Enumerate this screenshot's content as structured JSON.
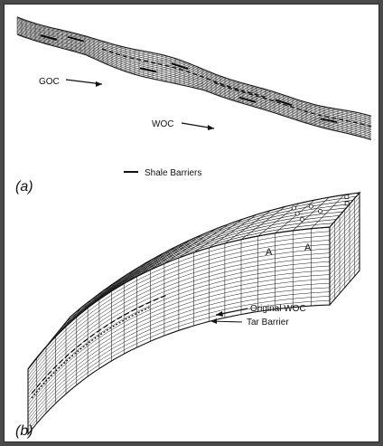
{
  "figure": {
    "panel_a": {
      "tag": "(a)",
      "labels": {
        "goc": "GOC",
        "woc": "WOC",
        "legend": "Shale Barriers"
      }
    },
    "panel_b": {
      "tag": "(b)",
      "labels": {
        "original_woc": "Original WOC",
        "tar_barrier": "Tar Barrier",
        "well_marker_1": "A",
        "well_marker_2": "A"
      }
    }
  }
}
